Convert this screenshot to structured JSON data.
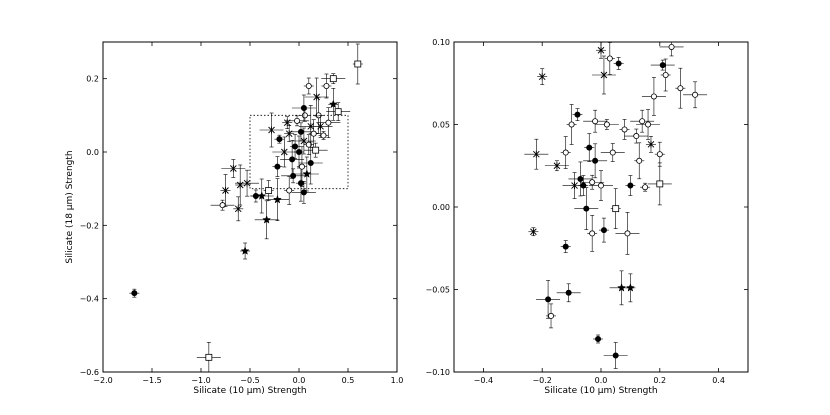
{
  "chart_data": [
    {
      "type": "scatter",
      "panel": "left",
      "xlabel": "Silicate (10 μm) Strength",
      "ylabel": "Silicate (18 μm) Strength",
      "xlim": [
        -2.0,
        1.0
      ],
      "ylim": [
        -0.6,
        0.3
      ],
      "xticks": [
        "−2.0",
        "−1.5",
        "−1.0",
        "−0.5",
        "0.0",
        "0.5",
        "1.0"
      ],
      "xtick_values": [
        -2.0,
        -1.5,
        -1.0,
        -0.5,
        0.0,
        0.5,
        1.0
      ],
      "yticks": [
        "−0.6",
        "−0.4",
        "−0.2",
        "0.0",
        "0.2"
      ],
      "ytick_values": [
        -0.6,
        -0.4,
        -0.2,
        0.0,
        0.2
      ],
      "grid": false,
      "zoom_box": {
        "x": [
          -0.5,
          0.5
        ],
        "y": [
          -0.1,
          0.1
        ]
      },
      "points": [
        {
          "x": -1.68,
          "y": -0.385,
          "m": "filled"
        },
        {
          "x": -0.92,
          "y": -0.56,
          "m": "square"
        },
        {
          "x": -0.55,
          "y": -0.27,
          "m": "star"
        },
        {
          "x": -0.33,
          "y": -0.185,
          "m": "star"
        },
        {
          "x": -0.62,
          "y": -0.155,
          "m": "cross"
        },
        {
          "x": -0.78,
          "y": -0.145,
          "m": "open"
        },
        {
          "x": -0.75,
          "y": -0.105,
          "m": "cross"
        },
        {
          "x": -0.67,
          "y": -0.045,
          "m": "cross"
        },
        {
          "x": -0.6,
          "y": -0.09,
          "m": "cross"
        },
        {
          "x": -0.53,
          "y": -0.085,
          "m": "cross"
        },
        {
          "x": -0.44,
          "y": -0.12,
          "m": "filled"
        },
        {
          "x": -0.38,
          "y": -0.12,
          "m": "star"
        },
        {
          "x": -0.31,
          "y": -0.105,
          "m": "square"
        },
        {
          "x": -0.22,
          "y": -0.13,
          "m": "star"
        },
        {
          "x": -0.1,
          "y": -0.105,
          "m": "open"
        },
        {
          "x": -0.06,
          "y": -0.065,
          "m": "filled"
        },
        {
          "x": 0.02,
          "y": -0.085,
          "m": "filled"
        },
        {
          "x": 0.05,
          "y": -0.11,
          "m": "filled"
        },
        {
          "x": -0.2,
          "y": 0.035,
          "m": "filled"
        },
        {
          "x": -0.15,
          "y": 0.0,
          "m": "cross"
        },
        {
          "x": -0.1,
          "y": 0.05,
          "m": "cross"
        },
        {
          "x": -0.07,
          "y": -0.02,
          "m": "filled"
        },
        {
          "x": -0.04,
          "y": 0.015,
          "m": "filled"
        },
        {
          "x": -0.02,
          "y": 0.085,
          "m": "open"
        },
        {
          "x": 0.0,
          "y": 0.0,
          "m": "filled"
        },
        {
          "x": 0.02,
          "y": 0.055,
          "m": "filled"
        },
        {
          "x": 0.03,
          "y": -0.04,
          "m": "open"
        },
        {
          "x": 0.05,
          "y": 0.03,
          "m": "cross"
        },
        {
          "x": 0.06,
          "y": 0.1,
          "m": "open"
        },
        {
          "x": 0.08,
          "y": -0.06,
          "m": "star"
        },
        {
          "x": 0.1,
          "y": 0.02,
          "m": "open"
        },
        {
          "x": 0.12,
          "y": 0.07,
          "m": "cross"
        },
        {
          "x": 0.15,
          "y": 0.05,
          "m": "open"
        },
        {
          "x": 0.17,
          "y": 0.005,
          "m": "square"
        },
        {
          "x": 0.2,
          "y": 0.1,
          "m": "open"
        },
        {
          "x": 0.22,
          "y": 0.07,
          "m": "cross"
        },
        {
          "x": 0.25,
          "y": 0.045,
          "m": "open"
        },
        {
          "x": 0.3,
          "y": 0.08,
          "m": "open"
        },
        {
          "x": 0.1,
          "y": 0.18,
          "m": "open"
        },
        {
          "x": 0.18,
          "y": 0.15,
          "m": "cross"
        },
        {
          "x": 0.28,
          "y": 0.18,
          "m": "open"
        },
        {
          "x": 0.35,
          "y": 0.2,
          "m": "square"
        },
        {
          "x": 0.35,
          "y": 0.13,
          "m": "star"
        },
        {
          "x": 0.4,
          "y": 0.11,
          "m": "square"
        },
        {
          "x": 0.6,
          "y": 0.24,
          "m": "square"
        },
        {
          "x": 0.05,
          "y": 0.12,
          "m": "filled"
        },
        {
          "x": -0.12,
          "y": 0.08,
          "m": "cross"
        },
        {
          "x": -0.28,
          "y": 0.06,
          "m": "cross"
        },
        {
          "x": -0.22,
          "y": -0.04,
          "m": "filled"
        },
        {
          "x": 0.12,
          "y": -0.03,
          "m": "filled"
        }
      ]
    },
    {
      "type": "scatter",
      "panel": "right",
      "xlabel": "Silicate (10 μm) Strength",
      "ylabel": "",
      "xlim": [
        -0.5,
        0.5
      ],
      "ylim": [
        -0.1,
        0.1
      ],
      "xticks": [
        "−0.4",
        "−0.2",
        "0.0",
        "0.2",
        "0.4"
      ],
      "xtick_values": [
        -0.4,
        -0.2,
        0.0,
        0.2,
        0.4
      ],
      "yticks": [
        "−0.10",
        "−0.05",
        "0.00",
        "0.05",
        "0.10"
      ],
      "ytick_values": [
        -0.1,
        -0.05,
        0.0,
        0.05,
        0.1
      ],
      "grid": false,
      "points": [
        {
          "x": -0.23,
          "y": -0.015,
          "m": "cross"
        },
        {
          "x": -0.22,
          "y": 0.032,
          "m": "cross"
        },
        {
          "x": -0.2,
          "y": 0.079,
          "m": "cross"
        },
        {
          "x": -0.18,
          "y": -0.056,
          "m": "filled"
        },
        {
          "x": -0.17,
          "y": -0.066,
          "m": "open"
        },
        {
          "x": -0.15,
          "y": 0.025,
          "m": "cross"
        },
        {
          "x": -0.12,
          "y": 0.033,
          "m": "open"
        },
        {
          "x": -0.11,
          "y": -0.052,
          "m": "filled"
        },
        {
          "x": -0.1,
          "y": 0.05,
          "m": "open"
        },
        {
          "x": -0.09,
          "y": 0.013,
          "m": "cross"
        },
        {
          "x": -0.08,
          "y": 0.056,
          "m": "filled"
        },
        {
          "x": -0.07,
          "y": 0.017,
          "m": "filled"
        },
        {
          "x": -0.06,
          "y": 0.013,
          "m": "filled"
        },
        {
          "x": -0.05,
          "y": -0.001,
          "m": "filled"
        },
        {
          "x": -0.04,
          "y": 0.036,
          "m": "filled"
        },
        {
          "x": -0.03,
          "y": 0.015,
          "m": "open"
        },
        {
          "x": -0.03,
          "y": -0.016,
          "m": "open"
        },
        {
          "x": -0.02,
          "y": 0.052,
          "m": "open"
        },
        {
          "x": -0.01,
          "y": -0.08,
          "m": "filled"
        },
        {
          "x": 0.0,
          "y": 0.013,
          "m": "open"
        },
        {
          "x": 0.0,
          "y": 0.095,
          "m": "cross"
        },
        {
          "x": 0.01,
          "y": 0.08,
          "m": "cross"
        },
        {
          "x": 0.01,
          "y": -0.014,
          "m": "filled"
        },
        {
          "x": 0.02,
          "y": 0.05,
          "m": "open"
        },
        {
          "x": 0.03,
          "y": 0.09,
          "m": "open"
        },
        {
          "x": 0.04,
          "y": 0.033,
          "m": "open"
        },
        {
          "x": 0.05,
          "y": -0.001,
          "m": "square"
        },
        {
          "x": 0.05,
          "y": -0.09,
          "m": "filled"
        },
        {
          "x": 0.06,
          "y": 0.087,
          "m": "filled"
        },
        {
          "x": 0.07,
          "y": -0.049,
          "m": "star"
        },
        {
          "x": 0.08,
          "y": 0.047,
          "m": "open"
        },
        {
          "x": 0.09,
          "y": -0.016,
          "m": "open"
        },
        {
          "x": 0.1,
          "y": -0.049,
          "m": "star"
        },
        {
          "x": 0.12,
          "y": 0.043,
          "m": "open"
        },
        {
          "x": 0.13,
          "y": 0.028,
          "m": "open"
        },
        {
          "x": 0.14,
          "y": 0.052,
          "m": "open"
        },
        {
          "x": 0.15,
          "y": 0.012,
          "m": "open"
        },
        {
          "x": 0.16,
          "y": 0.05,
          "m": "open"
        },
        {
          "x": 0.17,
          "y": 0.038,
          "m": "cross"
        },
        {
          "x": 0.18,
          "y": 0.067,
          "m": "open"
        },
        {
          "x": 0.2,
          "y": 0.032,
          "m": "open"
        },
        {
          "x": 0.21,
          "y": 0.086,
          "m": "filled"
        },
        {
          "x": 0.22,
          "y": 0.08,
          "m": "open"
        },
        {
          "x": 0.24,
          "y": 0.097,
          "m": "open"
        },
        {
          "x": 0.27,
          "y": 0.072,
          "m": "open"
        },
        {
          "x": 0.32,
          "y": 0.068,
          "m": "open"
        },
        {
          "x": -0.12,
          "y": -0.024,
          "m": "filled"
        },
        {
          "x": -0.02,
          "y": 0.028,
          "m": "filled"
        },
        {
          "x": 0.1,
          "y": 0.013,
          "m": "filled"
        },
        {
          "x": 0.2,
          "y": 0.014,
          "m": "square"
        }
      ]
    }
  ]
}
